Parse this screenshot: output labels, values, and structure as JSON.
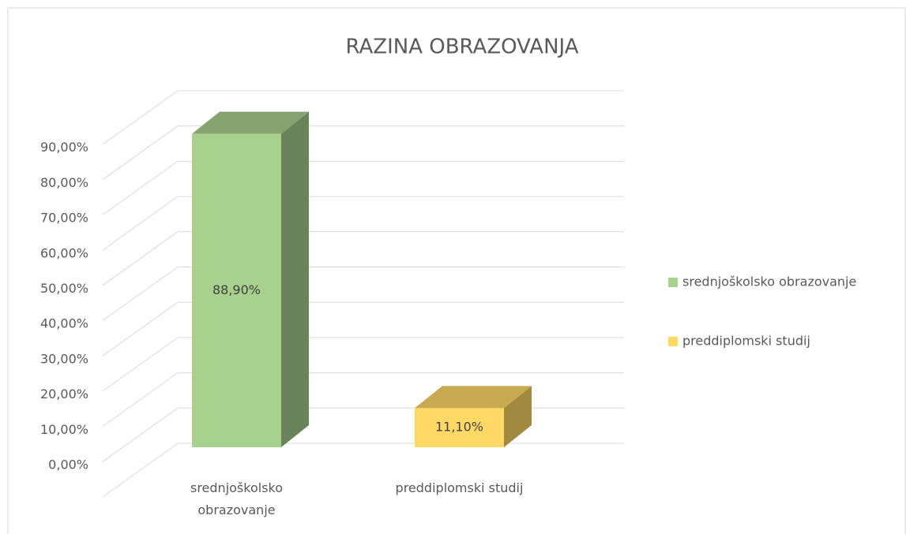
{
  "chart_data": {
    "type": "bar3d",
    "title": "RAZINA OBRAZOVANJA",
    "categories": [
      "srednjoškolsko obrazovanje",
      "preddiplomski studij"
    ],
    "values": [
      88.9,
      11.1
    ],
    "value_labels": [
      "88,90%",
      "11,10%"
    ],
    "colors": [
      "#a9d18e",
      "#ffd966"
    ],
    "ylim": [
      0,
      100
    ],
    "yticks": [
      {
        "value": 0,
        "label": "0,00%"
      },
      {
        "value": 10,
        "label": "10,00%"
      },
      {
        "value": 20,
        "label": "20,00%"
      },
      {
        "value": 30,
        "label": "30,00%"
      },
      {
        "value": 40,
        "label": "40,00%"
      },
      {
        "value": 50,
        "label": "50,00%"
      },
      {
        "value": 60,
        "label": "60,00%"
      },
      {
        "value": 70,
        "label": "70,00%"
      },
      {
        "value": 80,
        "label": "80,00%"
      },
      {
        "value": 90,
        "label": "90,00%"
      }
    ],
    "grid": true,
    "legend": "right"
  }
}
